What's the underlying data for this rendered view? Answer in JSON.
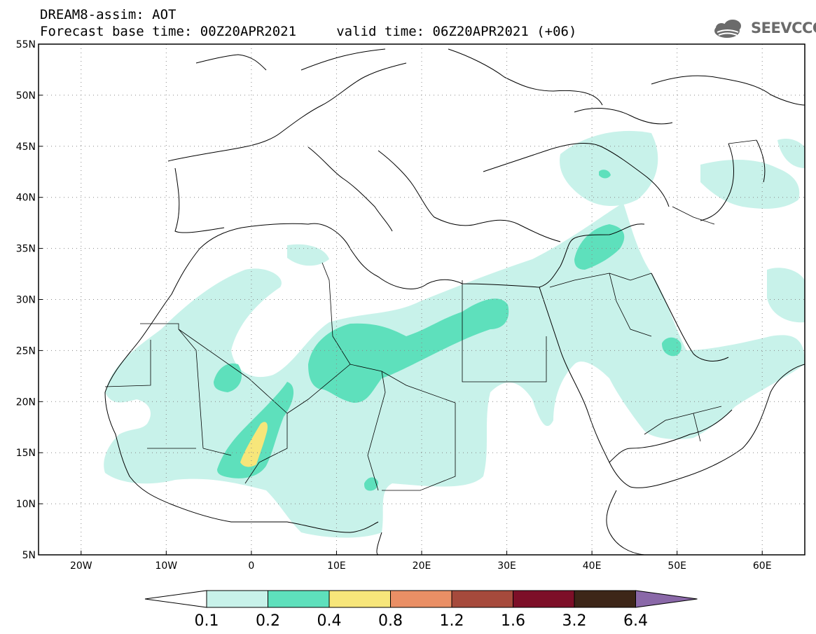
{
  "header": {
    "title": "DREAM8-assim: AOT",
    "subtitle": "Forecast base time: 00Z20APR2021     valid time: 06Z20APR2021 (+06)",
    "logo_text": "SEEVCCC"
  },
  "map": {
    "lon_range": [
      -25,
      65
    ],
    "lat_range": [
      5,
      55
    ],
    "lon_ticks": [
      {
        "value": -20,
        "label": "20W"
      },
      {
        "value": -10,
        "label": "10W"
      },
      {
        "value": 0,
        "label": "0"
      },
      {
        "value": 10,
        "label": "10E"
      },
      {
        "value": 20,
        "label": "20E"
      },
      {
        "value": 30,
        "label": "30E"
      },
      {
        "value": 40,
        "label": "40E"
      },
      {
        "value": 50,
        "label": "50E"
      },
      {
        "value": 60,
        "label": "60E"
      }
    ],
    "lat_ticks": [
      {
        "value": 55,
        "label": "55N"
      },
      {
        "value": 50,
        "label": "50N"
      },
      {
        "value": 45,
        "label": "45N"
      },
      {
        "value": 40,
        "label": "40N"
      },
      {
        "value": 35,
        "label": "35N"
      },
      {
        "value": 30,
        "label": "30N"
      },
      {
        "value": 25,
        "label": "25N"
      },
      {
        "value": 20,
        "label": "20N"
      },
      {
        "value": 15,
        "label": "15N"
      },
      {
        "value": 10,
        "label": "10N"
      },
      {
        "value": 5,
        "label": "5N"
      }
    ],
    "gridlines": "dotted"
  },
  "colorbar": {
    "labels": [
      "0.1",
      "0.2",
      "0.4",
      "0.8",
      "1.2",
      "1.6",
      "3.2",
      "6.4"
    ],
    "colors": [
      "#ffffff",
      "#c8f2ea",
      "#5ee0bc",
      "#f7e67a",
      "#ea8f65",
      "#a64a3c",
      "#7d0f28",
      "#3d2618",
      "#8a68a8"
    ]
  },
  "aot_levels": {
    "band1": "#c8f2ea",
    "band2": "#5ee0bc",
    "band3": "#f7e67a"
  }
}
